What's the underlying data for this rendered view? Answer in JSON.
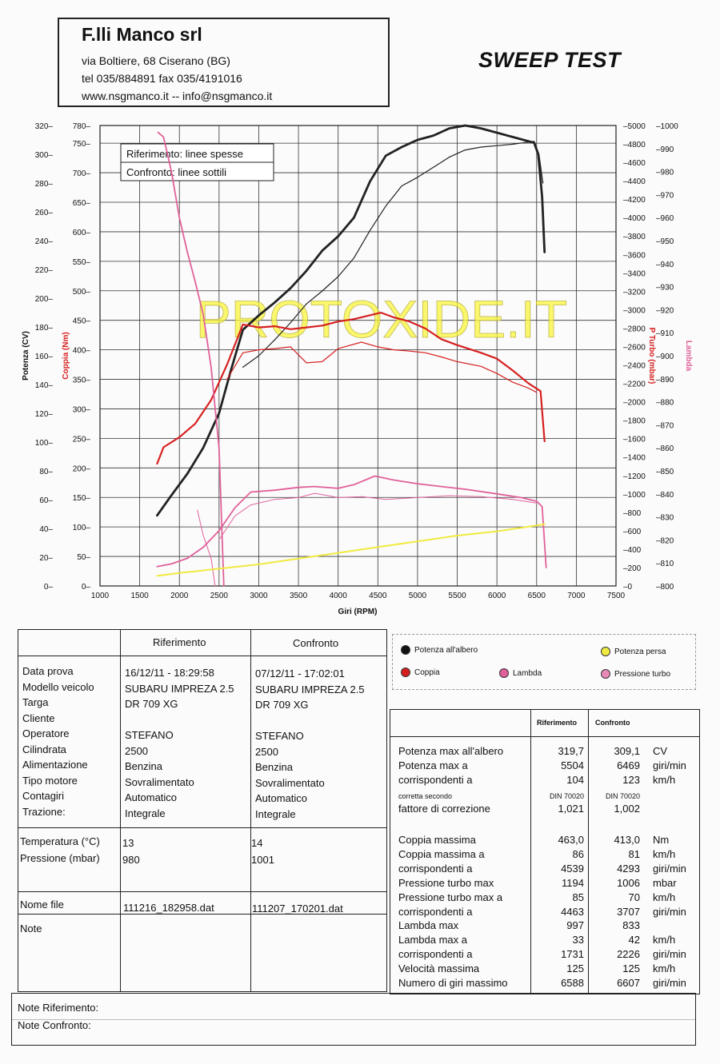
{
  "header": {
    "company": "F.lli Manco srl",
    "address": "via Boltiere, 68 Ciserano (BG)",
    "phone": "tel 035/884891 fax 035/4191016",
    "web": "www.nsgmanco.it  -- info@nsgmanco.it",
    "title": "SWEEP TEST"
  },
  "watermark": "PROTOXIDE.IT",
  "chart_data": {
    "type": "line",
    "xlabel": "Giri (RPM)",
    "x_ticks": [
      "1000",
      "1500",
      "2000",
      "2500",
      "3000",
      "3500",
      "4000",
      "4500",
      "5000",
      "5500",
      "6000",
      "6500",
      "7000",
      "7500"
    ],
    "axes": {
      "potenza": {
        "label": "Potenza (CV)",
        "ticks": [
          "320",
          "300",
          "280",
          "260",
          "240",
          "220",
          "200",
          "180",
          "160",
          "140",
          "120",
          "100",
          "80",
          "60",
          "40",
          "20",
          "0"
        ],
        "range": [
          0,
          320
        ]
      },
      "coppia": {
        "label": "Coppia (Nm)",
        "ticks": [
          "780",
          "750",
          "700",
          "650",
          "600",
          "550",
          "500",
          "450",
          "400",
          "350",
          "300",
          "250",
          "200",
          "150",
          "100",
          "50",
          "0"
        ],
        "range": [
          0,
          780
        ]
      },
      "turbo": {
        "label": "P Turbo (mbar)",
        "ticks": [
          "5000",
          "4800",
          "4600",
          "4400",
          "4200",
          "4000",
          "3800",
          "3600",
          "3400",
          "3200",
          "3000",
          "2800",
          "2600",
          "2400",
          "2200",
          "2000",
          "1800",
          "1600",
          "1400",
          "1200",
          "1000",
          "800",
          "600",
          "400",
          "200",
          "0"
        ],
        "range": [
          0,
          5000
        ]
      },
      "lambda": {
        "label": "Lambda",
        "ticks": [
          "-1000",
          "-990",
          "-980",
          "-970",
          "-960",
          "-950",
          "-940",
          "-930",
          "-920",
          "-910",
          "-900",
          "-890",
          "-880",
          "-870",
          "-860",
          "-850",
          "-840",
          "-830",
          "-820",
          "-810",
          "-800"
        ],
        "range": [
          -800,
          -1000
        ]
      }
    },
    "legend_box": [
      "Riferimento: linee spesse",
      "Confronto: linee sottili"
    ],
    "series": [
      {
        "name": "Potenza all'albero",
        "color": "#222222",
        "axis": "potenza",
        "width": 2.8,
        "points": [
          [
            1720,
            49
          ],
          [
            1900,
            63
          ],
          [
            2100,
            78
          ],
          [
            2300,
            96
          ],
          [
            2500,
            120
          ],
          [
            2650,
            150
          ],
          [
            2800,
            178
          ],
          [
            3000,
            188
          ],
          [
            3200,
            197
          ],
          [
            3400,
            207
          ],
          [
            3600,
            219
          ],
          [
            3800,
            233
          ],
          [
            4000,
            243
          ],
          [
            4200,
            256
          ],
          [
            4400,
            281
          ],
          [
            4600,
            299
          ],
          [
            4800,
            305
          ],
          [
            5000,
            310
          ],
          [
            5200,
            313
          ],
          [
            5400,
            318
          ],
          [
            5600,
            320
          ],
          [
            5800,
            318
          ],
          [
            6000,
            315
          ],
          [
            6200,
            312
          ],
          [
            6469,
            308
          ],
          [
            6520,
            300
          ],
          [
            6570,
            270
          ],
          [
            6600,
            232
          ]
        ]
      },
      {
        "name": "Potenza all'albero (confronto)",
        "color": "#222222",
        "axis": "potenza",
        "width": 1.2,
        "points": [
          [
            2800,
            152
          ],
          [
            3000,
            160
          ],
          [
            3200,
            171
          ],
          [
            3400,
            183
          ],
          [
            3600,
            196
          ],
          [
            3800,
            205
          ],
          [
            4000,
            215
          ],
          [
            4200,
            228
          ],
          [
            4400,
            247
          ],
          [
            4600,
            264
          ],
          [
            4800,
            278
          ],
          [
            5000,
            284
          ],
          [
            5200,
            291
          ],
          [
            5400,
            298
          ],
          [
            5600,
            303
          ],
          [
            5800,
            305
          ],
          [
            6000,
            306
          ],
          [
            6200,
            307
          ],
          [
            6469,
            309
          ],
          [
            6530,
            300
          ],
          [
            6580,
            280
          ]
        ]
      },
      {
        "name": "Coppia",
        "color": "#d62020",
        "axis": "coppia",
        "width": 2.2,
        "points": [
          [
            1720,
            207
          ],
          [
            1800,
            235
          ],
          [
            2000,
            252
          ],
          [
            2200,
            275
          ],
          [
            2400,
            315
          ],
          [
            2600,
            375
          ],
          [
            2800,
            443
          ],
          [
            3000,
            438
          ],
          [
            3200,
            440
          ],
          [
            3400,
            435
          ],
          [
            3600,
            438
          ],
          [
            3800,
            441
          ],
          [
            4000,
            448
          ],
          [
            4200,
            452
          ],
          [
            4539,
            463
          ],
          [
            4700,
            455
          ],
          [
            4900,
            448
          ],
          [
            5100,
            436
          ],
          [
            5300,
            418
          ],
          [
            5500,
            408
          ],
          [
            5800,
            395
          ],
          [
            6000,
            385
          ],
          [
            6200,
            365
          ],
          [
            6400,
            343
          ],
          [
            6550,
            330
          ],
          [
            6600,
            245
          ]
        ]
      },
      {
        "name": "Coppia (confronto)",
        "color": "#d62020",
        "axis": "coppia",
        "width": 1.2,
        "points": [
          [
            2600,
            350
          ],
          [
            2800,
            395
          ],
          [
            3000,
            400
          ],
          [
            3200,
            402
          ],
          [
            3400,
            405
          ],
          [
            3600,
            378
          ],
          [
            3800,
            380
          ],
          [
            4000,
            402
          ],
          [
            4293,
            413
          ],
          [
            4500,
            405
          ],
          [
            4700,
            400
          ],
          [
            4900,
            398
          ],
          [
            5100,
            395
          ],
          [
            5300,
            388
          ],
          [
            5500,
            380
          ],
          [
            5800,
            372
          ],
          [
            6000,
            360
          ],
          [
            6200,
            345
          ],
          [
            6400,
            335
          ],
          [
            6500,
            328
          ]
        ]
      },
      {
        "name": "Pressione turbo",
        "color": "#e0609a",
        "axis": "turbo",
        "width": 1.8,
        "points": [
          [
            1720,
            210
          ],
          [
            1900,
            240
          ],
          [
            2100,
            300
          ],
          [
            2300,
            420
          ],
          [
            2500,
            600
          ],
          [
            2700,
            850
          ],
          [
            2900,
            1020
          ],
          [
            3200,
            1040
          ],
          [
            3500,
            1070
          ],
          [
            3700,
            1080
          ],
          [
            4000,
            1060
          ],
          [
            4200,
            1100
          ],
          [
            4463,
            1194
          ],
          [
            4700,
            1150
          ],
          [
            5000,
            1110
          ],
          [
            5300,
            1080
          ],
          [
            5600,
            1050
          ],
          [
            6000,
            1000
          ],
          [
            6300,
            960
          ],
          [
            6500,
            920
          ],
          [
            6570,
            860
          ],
          [
            6620,
            200
          ]
        ]
      },
      {
        "name": "Pressione turbo (confronto)",
        "color": "#e0609a",
        "axis": "turbo",
        "width": 1.0,
        "points": [
          [
            2500,
            500
          ],
          [
            2700,
            760
          ],
          [
            2900,
            880
          ],
          [
            3200,
            940
          ],
          [
            3500,
            960
          ],
          [
            3707,
            1006
          ],
          [
            4000,
            960
          ],
          [
            4300,
            970
          ],
          [
            4600,
            940
          ],
          [
            5000,
            960
          ],
          [
            5400,
            980
          ],
          [
            5800,
            970
          ],
          [
            6200,
            940
          ],
          [
            6500,
            900
          ]
        ]
      },
      {
        "name": "Lambda",
        "color": "#e0609a",
        "axis": "lambda",
        "width": 1.8,
        "points": [
          [
            1731,
            -997
          ],
          [
            1800,
            -995
          ],
          [
            1900,
            -980
          ],
          [
            2000,
            -960
          ],
          [
            2100,
            -945
          ],
          [
            2200,
            -932
          ],
          [
            2300,
            -918
          ],
          [
            2400,
            -895
          ],
          [
            2500,
            -860
          ],
          [
            2560,
            -800
          ]
        ]
      },
      {
        "name": "Lambda (confronto)",
        "color": "#e0609a",
        "axis": "lambda",
        "width": 1.0,
        "points": [
          [
            2226,
            -833
          ],
          [
            2300,
            -822
          ],
          [
            2400,
            -812
          ],
          [
            2450,
            -800
          ]
        ]
      },
      {
        "name": "Potenza persa",
        "color": "#f0ea40",
        "axis": "potenza",
        "width": 2.0,
        "points": [
          [
            1720,
            7
          ],
          [
            2000,
            9
          ],
          [
            2500,
            12
          ],
          [
            3000,
            15
          ],
          [
            3500,
            19
          ],
          [
            4000,
            23
          ],
          [
            4500,
            27
          ],
          [
            5000,
            31
          ],
          [
            5500,
            35
          ],
          [
            6000,
            38
          ],
          [
            6500,
            42
          ],
          [
            6600,
            43
          ]
        ]
      }
    ]
  },
  "legend": {
    "potenza_albero": "Potenza all'albero",
    "potenza_persa": "Potenza persa",
    "coppia": "Coppia",
    "lambda": "Lambda",
    "pressione_turbo": "Pressione turbo",
    "colors": {
      "potenza": "#222222",
      "persa": "#f0ea40",
      "coppia": "#d62020",
      "lambda": "#e0609a",
      "turbo": "#e0609a"
    }
  },
  "vehicle_table": {
    "col_rif": "Riferimento",
    "col_conf": "Confronto",
    "rows": [
      {
        "label": "Data prova",
        "rif": "16/12/11 - 18:29:58",
        "conf": "07/12/11 - 17:02:01"
      },
      {
        "label": "Modello veicolo",
        "rif": "SUBARU IMPREZA 2.5",
        "conf": "SUBARU IMPREZA 2.5"
      },
      {
        "label": "Targa",
        "rif": "DR 709 XG",
        "conf": "DR 709 XG"
      },
      {
        "label": "Cliente",
        "rif": "",
        "conf": ""
      },
      {
        "label": "Operatore",
        "rif": "STEFANO",
        "conf": "STEFANO"
      },
      {
        "label": "Cilindrata",
        "rif": "2500",
        "conf": "2500"
      },
      {
        "label": "Alimentazione",
        "rif": "Benzina",
        "conf": "Benzina"
      },
      {
        "label": "Tipo motore",
        "rif": "Sovralimentato",
        "conf": "Sovralimentato"
      },
      {
        "label": "Contagiri",
        "rif": "Automatico",
        "conf": "Automatico"
      },
      {
        "label": "Trazione:",
        "rif": "Integrale",
        "conf": "Integrale"
      }
    ],
    "env_rows": [
      {
        "label": "Temperatura (°C)",
        "rif": "13",
        "conf": "14"
      },
      {
        "label": "Pressione (mbar)",
        "rif": "980",
        "conf": "1001"
      }
    ],
    "file": {
      "label": "Nome file",
      "rif": "111216_182958.dat",
      "conf": "111207_170201.dat"
    },
    "note_label": "Note"
  },
  "results_table": {
    "col_rif": "Riferimento",
    "col_conf": "Confronto",
    "rows": [
      {
        "label": "Potenza max all'albero",
        "rif": "319,7",
        "conf": "309,1",
        "unit": "CV"
      },
      {
        "label": "Potenza max a",
        "rif": "5504",
        "conf": "6469",
        "unit": "giri/min"
      },
      {
        "label": "corrispondenti a",
        "rif": "104",
        "conf": "123",
        "unit": "km/h"
      },
      {
        "label": "corretta secondo",
        "rif": "DIN 70020",
        "conf": "DIN 70020",
        "unit": "",
        "small": true
      },
      {
        "label": "fattore di correzione",
        "rif": "1,021",
        "conf": "1,002",
        "unit": ""
      }
    ],
    "rows2": [
      {
        "label": "Coppia massima",
        "rif": "463,0",
        "conf": "413,0",
        "unit": "Nm"
      },
      {
        "label": "Coppia massima a",
        "rif": "86",
        "conf": "81",
        "unit": "km/h"
      },
      {
        "label": "corrispondenti a",
        "rif": "4539",
        "conf": "4293",
        "unit": "giri/min"
      },
      {
        "label": "Pressione turbo max",
        "rif": "1194",
        "conf": "1006",
        "unit": "mbar"
      },
      {
        "label": "Pressione turbo max a",
        "rif": "85",
        "conf": "70",
        "unit": "km/h"
      },
      {
        "label": "corrispondenti a",
        "rif": "4463",
        "conf": "3707",
        "unit": "giri/min"
      },
      {
        "label": "Lambda max",
        "rif": "997",
        "conf": "833",
        "unit": ""
      },
      {
        "label": "Lambda max a",
        "rif": "33",
        "conf": "42",
        "unit": "km/h"
      },
      {
        "label": "corrispondenti a",
        "rif": "1731",
        "conf": "2226",
        "unit": "giri/min"
      },
      {
        "label": "Velocità massima",
        "rif": "125",
        "conf": "125",
        "unit": "km/h"
      },
      {
        "label": "Numero di giri massimo",
        "rif": "6588",
        "conf": "6607",
        "unit": "giri/min"
      }
    ]
  },
  "notes": {
    "rif": "Note Riferimento:",
    "conf": "Note Confronto:"
  }
}
